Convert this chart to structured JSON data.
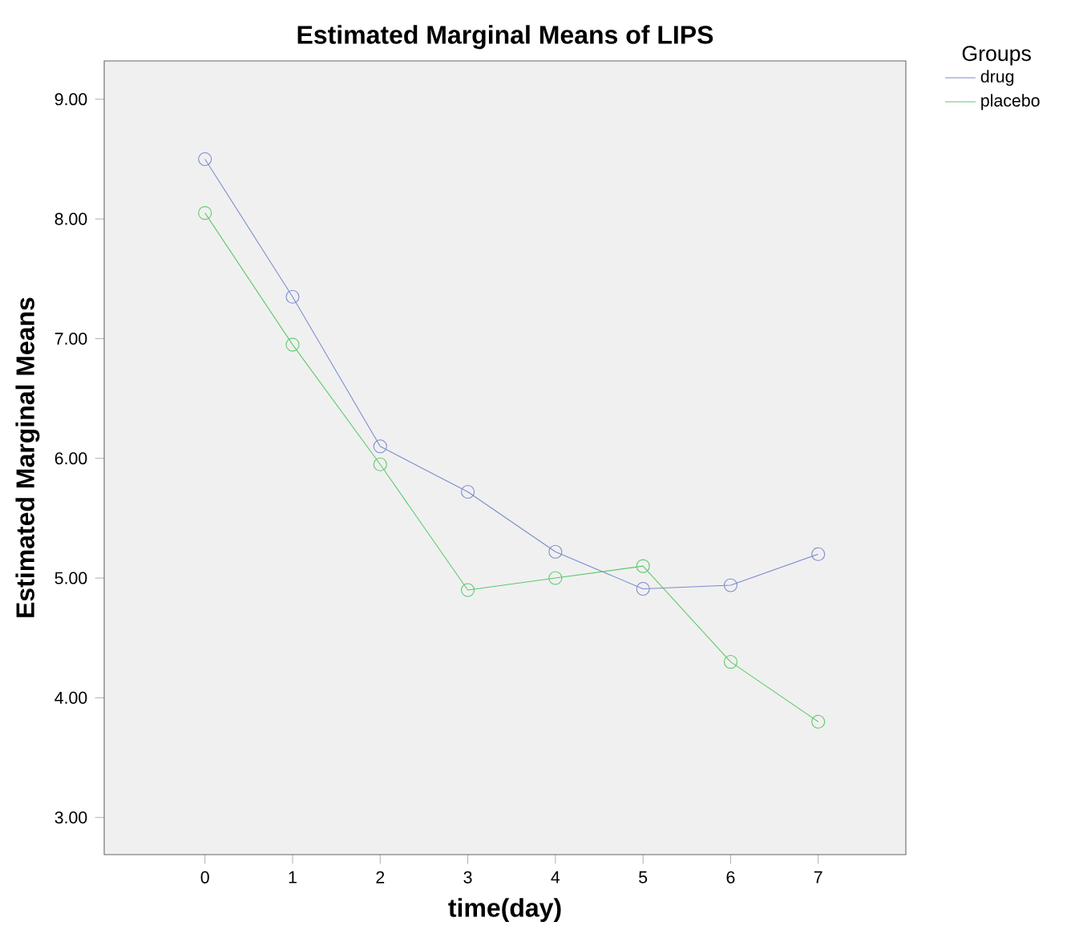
{
  "chart_data": {
    "type": "line",
    "title": "Estimated Marginal Means of LIPS",
    "xlabel": "time(day)",
    "ylabel": "Estimated Marginal Means",
    "legend_title": "Groups",
    "categories": [
      "0",
      "1",
      "2",
      "3",
      "4",
      "5",
      "6",
      "7"
    ],
    "series": [
      {
        "name": "drug",
        "color": "#7b8ccf",
        "values": [
          8.5,
          7.35,
          6.1,
          5.72,
          5.22,
          4.91,
          4.94,
          5.2
        ]
      },
      {
        "name": "placebo",
        "color": "#5cc96b",
        "values": [
          8.05,
          6.95,
          5.95,
          4.9,
          5.0,
          5.1,
          4.3,
          3.8
        ]
      }
    ],
    "ylim": [
      2.69,
      9.32
    ],
    "yticks": [
      {
        "value": 3,
        "label": "3.00"
      },
      {
        "value": 4,
        "label": "4.00"
      },
      {
        "value": 5,
        "label": "5.00"
      },
      {
        "value": 6,
        "label": "6.00"
      },
      {
        "value": 7,
        "label": "7.00"
      },
      {
        "value": 8,
        "label": "8.00"
      },
      {
        "value": 9,
        "label": "9.00"
      }
    ],
    "marker": "circle",
    "line_style": "solid",
    "legend": "top right",
    "grid": false
  }
}
